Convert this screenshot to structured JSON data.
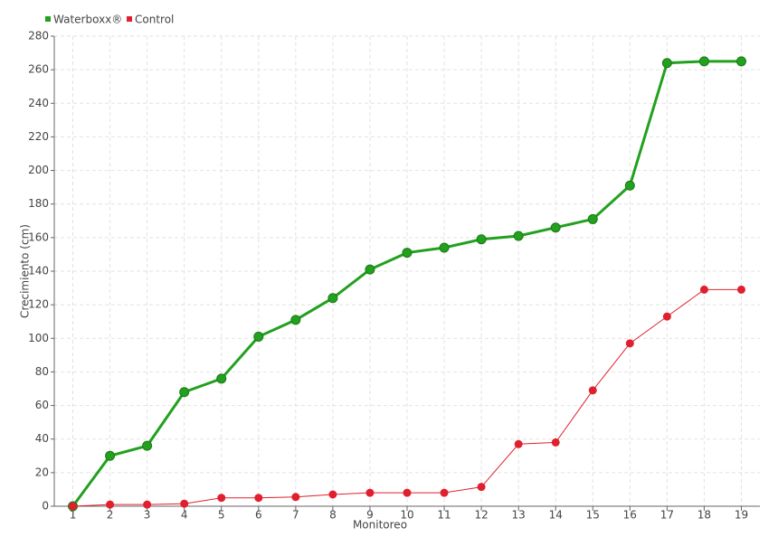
{
  "chart_data": {
    "type": "line",
    "x_label": "Monitoreo",
    "y_label": "Crecimiento (cm)",
    "categories": [
      "1",
      "2",
      "3",
      "4",
      "5",
      "6",
      "7",
      "8",
      "9",
      "10",
      "11",
      "12",
      "13",
      "14",
      "15",
      "16",
      "17",
      "18",
      "19"
    ],
    "series": [
      {
        "name": "Waterboxx®",
        "color": "#22a01e",
        "values": [
          0,
          30,
          36,
          68,
          76,
          101,
          111,
          124,
          141,
          151,
          154,
          159,
          161,
          166,
          171,
          191,
          264,
          265,
          265
        ]
      },
      {
        "name": "Control",
        "color": "#e0202e",
        "values": [
          0,
          1,
          1,
          1.5,
          5,
          5,
          5.5,
          7,
          8,
          8,
          8,
          11.5,
          37,
          38,
          69,
          97,
          113,
          129,
          129
        ]
      }
    ],
    "ylim": [
      0,
      280
    ],
    "yticks": [
      0,
      20,
      40,
      60,
      80,
      100,
      120,
      140,
      160,
      180,
      200,
      220,
      240,
      260,
      280
    ],
    "grid": true,
    "legend": "top-left"
  }
}
